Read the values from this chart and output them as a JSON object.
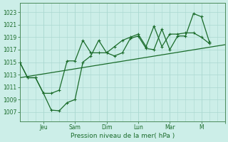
{
  "title": "",
  "xlabel": "Pression niveau de la mer( hPa )",
  "bg_color": "#cceee8",
  "grid_color": "#aad8d0",
  "line_color": "#1a6b2a",
  "spine_color": "#4a8a5a",
  "ylim": [
    1005.5,
    1024.5
  ],
  "yticks": [
    1007,
    1009,
    1011,
    1013,
    1015,
    1017,
    1019,
    1021,
    1023
  ],
  "xlim": [
    0,
    13
  ],
  "day_positions": [
    1.5,
    3.5,
    5.5,
    7.5,
    9.5,
    11.5,
    13.0
  ],
  "day_labels": [
    "Jeu",
    "Sam",
    "Dim",
    "Lun",
    "Mar",
    "M",
    ""
  ],
  "minor_x_positions": [
    0.5,
    1.0,
    1.5,
    2.0,
    2.5,
    3.0,
    3.5,
    4.0,
    4.5,
    5.0,
    5.5,
    6.0,
    6.5,
    7.0,
    7.5,
    8.0,
    8.5,
    9.0,
    9.5,
    10.0,
    10.5,
    11.0,
    11.5,
    12.0,
    12.5,
    13.0
  ],
  "trend_x": [
    0,
    13
  ],
  "trend_y": [
    1012.5,
    1017.8
  ],
  "series1_x": [
    0.0,
    0.5,
    1.0,
    1.5,
    2.0,
    2.5,
    3.0,
    3.5,
    4.0,
    4.5,
    5.0,
    5.5,
    6.0,
    6.5,
    7.0,
    7.5,
    8.0,
    8.5,
    9.0,
    9.5,
    10.0,
    10.5,
    11.0,
    11.5,
    12.0
  ],
  "series1_y": [
    1015.0,
    1012.5,
    1012.5,
    1010.0,
    1007.3,
    1007.2,
    1008.5,
    1009.0,
    1015.0,
    1016.0,
    1018.5,
    1016.5,
    1016.0,
    1016.5,
    1018.8,
    1019.2,
    1017.2,
    1017.0,
    1020.3,
    1017.0,
    1019.2,
    1019.2,
    1022.8,
    1022.3,
    1018.3
  ],
  "series2_x": [
    0.0,
    0.5,
    1.0,
    1.5,
    2.0,
    2.5,
    3.0,
    3.5,
    4.0,
    4.5,
    5.0,
    5.5,
    6.0,
    6.5,
    7.0,
    7.5,
    8.0,
    8.5,
    9.0,
    9.5,
    10.0,
    10.5,
    11.0,
    11.5,
    12.0
  ],
  "series2_y": [
    1015.0,
    1012.5,
    1012.5,
    1010.0,
    1010.0,
    1010.5,
    1015.2,
    1015.2,
    1018.5,
    1016.5,
    1016.5,
    1016.5,
    1017.5,
    1018.5,
    1019.0,
    1019.5,
    1017.5,
    1020.8,
    1017.5,
    1019.5,
    1019.5,
    1019.7,
    1019.7,
    1019.0,
    1018.0
  ],
  "tick_fontsize": 5.5,
  "xlabel_fontsize": 6.5
}
